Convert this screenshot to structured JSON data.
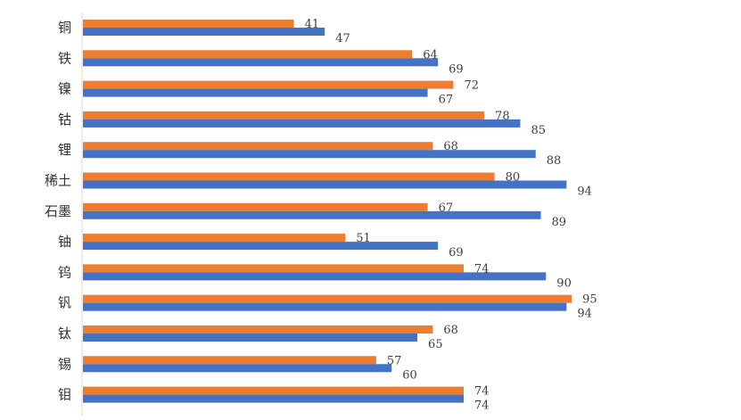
{
  "chart_data": {
    "type": "bar",
    "orientation": "horizontal",
    "categories": [
      "铜",
      "铁",
      "镍",
      "钴",
      "锂",
      "稀土",
      "石墨",
      "铀",
      "钨",
      "钒",
      "钛",
      "锡",
      "钼"
    ],
    "series": [
      {
        "name": "series-1",
        "color": "#ED7D31",
        "values": [
          41,
          64,
          72,
          78,
          68,
          80,
          67,
          51,
          74,
          95,
          68,
          57,
          74
        ]
      },
      {
        "name": "series-2",
        "color": "#4472C4",
        "values": [
          47,
          69,
          67,
          85,
          88,
          94,
          89,
          69,
          90,
          94,
          65,
          60,
          74
        ]
      }
    ],
    "xlim": [
      0,
      100
    ],
    "grid": false,
    "title": "",
    "xlabel": "",
    "ylabel": ""
  }
}
